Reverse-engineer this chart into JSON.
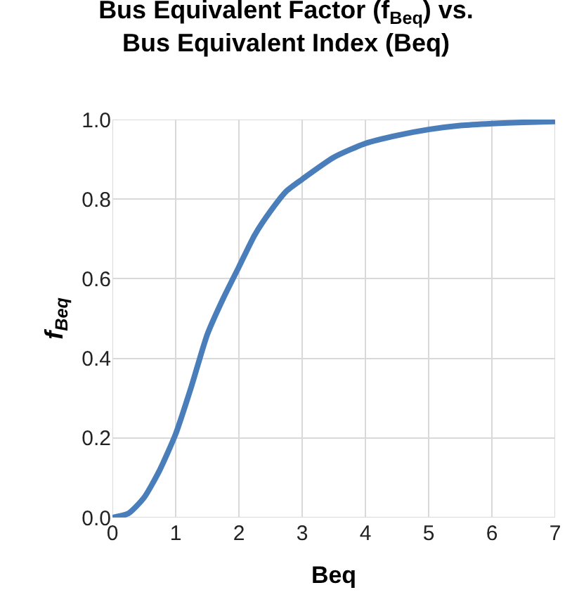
{
  "chart_data": {
    "type": "line",
    "title": "Bus Equivalent Factor (f$_{Beq}$) vs.\nBus Equivalent Index (Beq)",
    "xlabel": "Beq",
    "ylabel": "f$_{Beq}$",
    "x": [
      0,
      0.25,
      0.5,
      0.75,
      1,
      1.25,
      1.5,
      1.75,
      2,
      2.25,
      2.5,
      2.75,
      3,
      3.5,
      4,
      4.5,
      5,
      5.5,
      6,
      6.5,
      7
    ],
    "series": [
      {
        "color": "#4a7ebb",
        "values": [
          0,
          0.01,
          0.05,
          0.12,
          0.21,
          0.33,
          0.46,
          0.55,
          0.63,
          0.71,
          0.77,
          0.82,
          0.85,
          0.905,
          0.94,
          0.96,
          0.975,
          0.985,
          0.99,
          0.993,
          0.995
        ]
      }
    ],
    "xlim": [
      0,
      7
    ],
    "xticks": [
      0,
      1,
      2,
      3,
      4,
      5,
      6,
      7
    ],
    "ylim": [
      0,
      1
    ],
    "yticks": [
      {
        "value": 0,
        "label": "0.0"
      },
      {
        "value": 0.2,
        "label": "0.2"
      },
      {
        "value": 0.4,
        "label": "0.4"
      },
      {
        "value": 0.6,
        "label": "0.6"
      },
      {
        "value": 0.8,
        "label": "0.8"
      },
      {
        "value": 1,
        "label": "1.0"
      }
    ],
    "grid": true,
    "legend": false,
    "marker": "none",
    "line_style": "solid"
  }
}
